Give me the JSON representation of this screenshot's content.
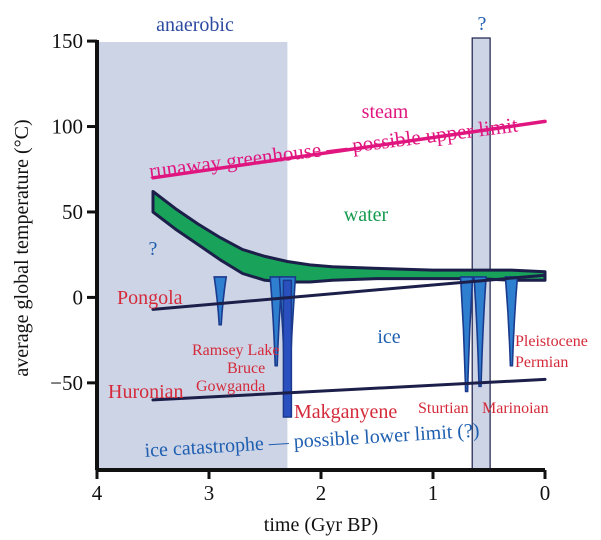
{
  "chart_data": {
    "type": "line",
    "xlabel": "time (Gyr BP)",
    "ylabel": "average global temperature (°C)",
    "xlim": [
      4,
      0
    ],
    "ylim": [
      -101,
      160
    ],
    "x_ticks": [
      4,
      3,
      2,
      1,
      0
    ],
    "y_ticks": [
      150,
      100,
      50,
      0,
      -50
    ],
    "regions": [
      {
        "label": "anaerobic",
        "x_start": 4.0,
        "x_end": 2.3,
        "color": "#cdd4e6"
      },
      {
        "label": "?",
        "x_start": 0.65,
        "x_end": 0.49,
        "color": "#cdd4e6"
      }
    ],
    "series": [
      {
        "name": "runaway greenhouse — possible upper limit",
        "color": "#e0157f",
        "x": [
          3.5,
          0.0
        ],
        "y": [
          70,
          103
        ]
      },
      {
        "name": "ice catastrophe — possible lower limit (?)",
        "color": "#1b1f4a",
        "x": [
          3.5,
          0.0
        ],
        "y": [
          -60,
          -48
        ]
      },
      {
        "name": "",
        "color": "#1b1f4a",
        "x": [
          3.5,
          0.0
        ],
        "y": [
          -7,
          13
        ]
      }
    ],
    "temperature_band": {
      "color": "#18a25a",
      "x": [
        3.5,
        3.3,
        3.1,
        2.9,
        2.7,
        2.5,
        2.3,
        2.1,
        1.9,
        1.5,
        1.0,
        0.6,
        0.3,
        0.0
      ],
      "upper": [
        62,
        52,
        43,
        35,
        28,
        24,
        21,
        19,
        18,
        17,
        16,
        16,
        16,
        15
      ],
      "lower": [
        50,
        40,
        31,
        22,
        14,
        10,
        9,
        9,
        10,
        11,
        11,
        11,
        10,
        10
      ]
    },
    "glaciations": [
      {
        "name": "Pongola",
        "x": 2.9,
        "y_min": -16
      },
      {
        "name": "Huronian",
        "x": 2.4,
        "y_min": -40
      },
      {
        "name": "Huronian",
        "x": 2.3,
        "y_min": -68
      },
      {
        "name": "Sturtian",
        "x": 0.7,
        "y_min": -55
      },
      {
        "name": "Marinoian",
        "x": 0.58,
        "y_min": -52
      },
      {
        "name": "Permian",
        "x": 0.3,
        "y_min": -40
      }
    ],
    "annotations": {
      "anaerobic": "anaerobic",
      "q_top": "?",
      "q_left": "?",
      "steam": "steam",
      "water": "water",
      "ice": "ice",
      "upper_limit": "runaway greenhouse — possible upper limit",
      "lower_limit": "ice catastrophe — possible lower limit (?)",
      "pongola": "Pongola",
      "huronian": "Huronian",
      "ramsey_lake": "Ramsey Lake",
      "bruce": "Bruce",
      "gowganda": "Gowganda",
      "makganyene": "Makganyene",
      "sturtian": "Sturtian",
      "marinoian": "Marinoian",
      "pleistocene": "Pleistocene",
      "permian": "Permian"
    },
    "colors": {
      "region": "#cdd4e6",
      "upper_limit": "#e0157f",
      "glacial_text": "#d42a3a",
      "blue_text": "#1f5fb0",
      "water_text": "#159a4e",
      "dark_line": "#1b1f4a",
      "spike_dark": "#1b3a8c",
      "spike_mid": "#2f7fd0"
    },
    "grid": false
  }
}
